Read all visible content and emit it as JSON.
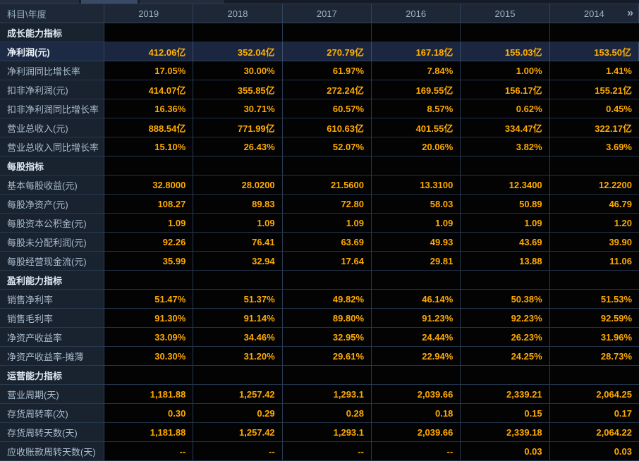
{
  "top_tabs": {
    "note": "partially cropped tab strip"
  },
  "table": {
    "corner_label": "科目\\年度",
    "years": [
      "2019",
      "2018",
      "2017",
      "2016",
      "2015",
      "2014"
    ],
    "more_years_icon": "»",
    "rows": [
      {
        "type": "section",
        "label": "成长能力指标",
        "values": [
          "",
          "",
          "",
          "",
          "",
          ""
        ]
      },
      {
        "type": "highlight",
        "label": "净利润(元)",
        "values": [
          "412.06亿",
          "352.04亿",
          "270.79亿",
          "167.18亿",
          "155.03亿",
          "153.50亿"
        ]
      },
      {
        "type": "normal",
        "label": "净利润同比增长率",
        "values": [
          "17.05%",
          "30.00%",
          "61.97%",
          "7.84%",
          "1.00%",
          "1.41%"
        ]
      },
      {
        "type": "normal",
        "label": "扣非净利润(元)",
        "values": [
          "414.07亿",
          "355.85亿",
          "272.24亿",
          "169.55亿",
          "156.17亿",
          "155.21亿"
        ]
      },
      {
        "type": "normal",
        "label": "扣非净利润同比增长率",
        "values": [
          "16.36%",
          "30.71%",
          "60.57%",
          "8.57%",
          "0.62%",
          "0.45%"
        ]
      },
      {
        "type": "normal",
        "label": "营业总收入(元)",
        "values": [
          "888.54亿",
          "771.99亿",
          "610.63亿",
          "401.55亿",
          "334.47亿",
          "322.17亿"
        ]
      },
      {
        "type": "normal",
        "label": "营业总收入同比增长率",
        "values": [
          "15.10%",
          "26.43%",
          "52.07%",
          "20.06%",
          "3.82%",
          "3.69%"
        ]
      },
      {
        "type": "section",
        "label": "每股指标",
        "values": [
          "",
          "",
          "",
          "",
          "",
          ""
        ]
      },
      {
        "type": "normal",
        "label": "基本每股收益(元)",
        "values": [
          "32.8000",
          "28.0200",
          "21.5600",
          "13.3100",
          "12.3400",
          "12.2200"
        ]
      },
      {
        "type": "normal",
        "label": "每股净资产(元)",
        "values": [
          "108.27",
          "89.83",
          "72.80",
          "58.03",
          "50.89",
          "46.79"
        ]
      },
      {
        "type": "normal",
        "label": "每股资本公积金(元)",
        "values": [
          "1.09",
          "1.09",
          "1.09",
          "1.09",
          "1.09",
          "1.20"
        ]
      },
      {
        "type": "normal",
        "label": "每股未分配利润(元)",
        "values": [
          "92.26",
          "76.41",
          "63.69",
          "49.93",
          "43.69",
          "39.90"
        ]
      },
      {
        "type": "normal",
        "label": "每股经营现金流(元)",
        "values": [
          "35.99",
          "32.94",
          "17.64",
          "29.81",
          "13.88",
          "11.06"
        ]
      },
      {
        "type": "section",
        "label": "盈利能力指标",
        "values": [
          "",
          "",
          "",
          "",
          "",
          ""
        ]
      },
      {
        "type": "normal",
        "label": "销售净利率",
        "values": [
          "51.47%",
          "51.37%",
          "49.82%",
          "46.14%",
          "50.38%",
          "51.53%"
        ]
      },
      {
        "type": "normal",
        "label": "销售毛利率",
        "values": [
          "91.30%",
          "91.14%",
          "89.80%",
          "91.23%",
          "92.23%",
          "92.59%"
        ]
      },
      {
        "type": "normal",
        "label": "净资产收益率",
        "values": [
          "33.09%",
          "34.46%",
          "32.95%",
          "24.44%",
          "26.23%",
          "31.96%"
        ]
      },
      {
        "type": "normal",
        "label": "净资产收益率-摊薄",
        "values": [
          "30.30%",
          "31.20%",
          "29.61%",
          "22.94%",
          "24.25%",
          "28.73%"
        ]
      },
      {
        "type": "section",
        "label": "运营能力指标",
        "values": [
          "",
          "",
          "",
          "",
          "",
          ""
        ]
      },
      {
        "type": "normal",
        "label": "营业周期(天)",
        "values": [
          "1,181.88",
          "1,257.42",
          "1,293.1",
          "2,039.66",
          "2,339.21",
          "2,064.25"
        ]
      },
      {
        "type": "normal",
        "label": "存货周转率(次)",
        "values": [
          "0.30",
          "0.29",
          "0.28",
          "0.18",
          "0.15",
          "0.17"
        ]
      },
      {
        "type": "normal",
        "label": "存货周转天数(天)",
        "values": [
          "1,181.88",
          "1,257.42",
          "1,293.1",
          "2,039.66",
          "2,339.18",
          "2,064.22"
        ]
      },
      {
        "type": "normal",
        "label": "应收账款周转天数(天)",
        "values": [
          "--",
          "--",
          "--",
          "--",
          "0.03",
          "0.03"
        ]
      }
    ]
  },
  "colors": {
    "value_orange": "#ffaa00",
    "highlight_row_bg": "#1b2640",
    "label_col_bg": "#19222f",
    "header_bg": "#1d2735",
    "grid_border": "#2b3b52",
    "header_text": "#9db3c8"
  }
}
